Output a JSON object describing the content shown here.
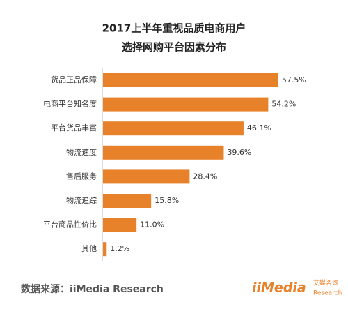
{
  "chart_data": {
    "type": "hbar",
    "title": [
      "2017上半年重视品质电商用户",
      "选择网购平台因素分布"
    ],
    "categories": [
      "货品正品保障",
      "电商平台知名度",
      "平台货品丰富",
      "物流速度",
      "售后服务",
      "物流追踪",
      "平台商品性价比",
      "其他"
    ],
    "values": [
      57.5,
      54.2,
      46.1,
      39.6,
      28.4,
      15.8,
      11.0,
      1.2
    ],
    "value_labels": [
      "57.5%",
      "54.2%",
      "46.1%",
      "39.6%",
      "28.4%",
      "15.8%",
      "11.0%",
      "1.2%"
    ],
    "color": "#e8822a",
    "source": "数据来源：iiMedia Research",
    "logo": {
      "brand": "iiMedia",
      "cn": "艾媒咨询",
      "en": "Research"
    }
  }
}
